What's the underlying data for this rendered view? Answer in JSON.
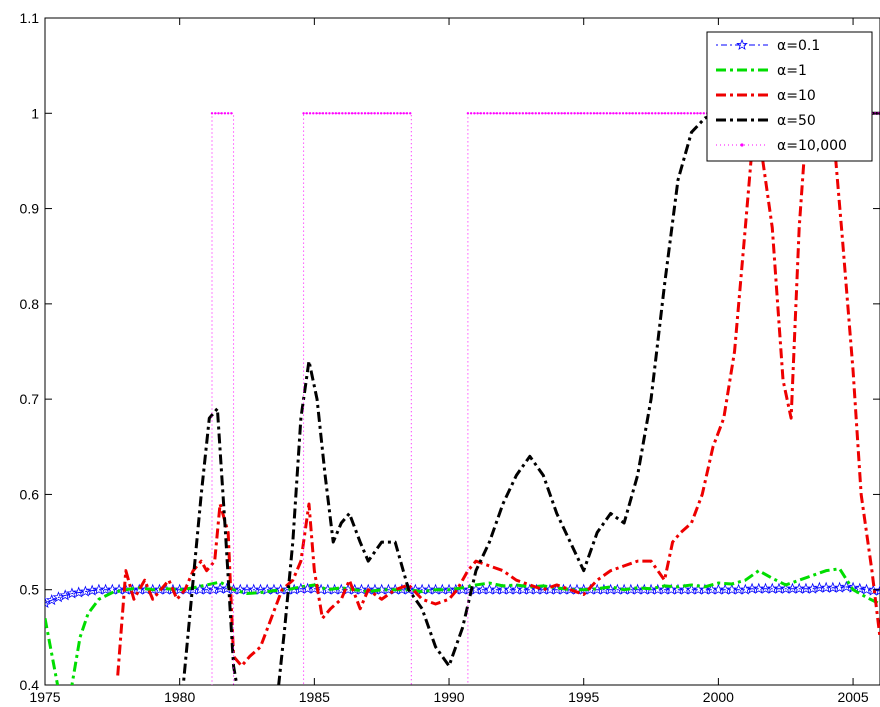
{
  "chart_data": {
    "type": "line",
    "title": "",
    "xlabel": "",
    "ylabel": "",
    "xlim": [
      1975,
      2006
    ],
    "ylim": [
      0.4,
      1.1
    ],
    "xticks": [
      "1975",
      "1980",
      "1985",
      "1990",
      "1995",
      "2000",
      "2005"
    ],
    "yticks": [
      "0.4",
      "0.5",
      "0.6",
      "0.7",
      "0.8",
      "0.9",
      "1",
      "1.1"
    ],
    "grid": false,
    "legend_position": "top-right",
    "series": [
      {
        "name": "α=0.1",
        "color": "#0000ff",
        "style": "dash-dot with star markers",
        "x": [
          1975,
          1975.25,
          1975.5,
          1975.75,
          1976,
          1976.25,
          1976.5,
          1976.75,
          1977,
          1977.25,
          1977.5,
          1977.75,
          1978,
          1978.25,
          1978.5,
          1978.75,
          1979,
          1979.25,
          1979.5,
          1979.75,
          1980,
          1980.25,
          1980.5,
          1980.75,
          1981,
          1981.25,
          1981.5,
          1981.75,
          1982,
          1982.25,
          1982.5,
          1982.75,
          1983,
          1983.25,
          1983.5,
          1983.75,
          1984,
          1984.25,
          1984.5,
          1984.75,
          1985,
          1985.25,
          1985.5,
          1985.75,
          1986,
          1986.25,
          1986.5,
          1986.75,
          1987,
          1987.25,
          1987.5,
          1987.75,
          1988,
          1988.25,
          1988.5,
          1988.75,
          1989,
          1989.25,
          1989.5,
          1989.75,
          1990,
          1990.25,
          1990.5,
          1990.75,
          1991,
          1991.25,
          1991.5,
          1991.75,
          1992,
          1992.25,
          1992.5,
          1992.75,
          1993,
          1993.25,
          1993.5,
          1993.75,
          1994,
          1994.25,
          1994.5,
          1994.75,
          1995,
          1995.25,
          1995.5,
          1995.75,
          1996,
          1996.25,
          1996.5,
          1996.75,
          1997,
          1997.25,
          1997.5,
          1997.75,
          1998,
          1998.25,
          1998.5,
          1998.75,
          1999,
          1999.25,
          1999.5,
          1999.75,
          2000,
          2000.25,
          2000.5,
          2000.75,
          2001,
          2001.25,
          2001.5,
          2001.75,
          2002,
          2002.25,
          2002.5,
          2002.75,
          2003,
          2003.25,
          2003.5,
          2003.75,
          2004,
          2004.25,
          2004.5,
          2004.75,
          2005,
          2005.25,
          2005.5,
          2005.75,
          2006
        ],
        "y": [
          0.486,
          0.489,
          0.492,
          0.494,
          0.496,
          0.497,
          0.498,
          0.499,
          0.5,
          0.5,
          0.5,
          0.5,
          0.5,
          0.5,
          0.5,
          0.5,
          0.5,
          0.5,
          0.5,
          0.5,
          0.5,
          0.5,
          0.5,
          0.5,
          0.5,
          0.5,
          0.501,
          0.501,
          0.5,
          0.5,
          0.5,
          0.5,
          0.5,
          0.5,
          0.5,
          0.5,
          0.5,
          0.5,
          0.501,
          0.501,
          0.501,
          0.5,
          0.5,
          0.5,
          0.5,
          0.5,
          0.5,
          0.5,
          0.5,
          0.5,
          0.5,
          0.5,
          0.5,
          0.5,
          0.5,
          0.5,
          0.5,
          0.5,
          0.5,
          0.5,
          0.5,
          0.5,
          0.5,
          0.5,
          0.5,
          0.5,
          0.5,
          0.5,
          0.5,
          0.5,
          0.5,
          0.5,
          0.5,
          0.5,
          0.5,
          0.5,
          0.5,
          0.5,
          0.5,
          0.5,
          0.5,
          0.5,
          0.5,
          0.5,
          0.5,
          0.5,
          0.5,
          0.5,
          0.5,
          0.5,
          0.5,
          0.5,
          0.5,
          0.5,
          0.5,
          0.5,
          0.5,
          0.5,
          0.5,
          0.5,
          0.5,
          0.5,
          0.5,
          0.5,
          0.5,
          0.501,
          0.501,
          0.501,
          0.501,
          0.501,
          0.501,
          0.501,
          0.501,
          0.501,
          0.501,
          0.502,
          0.502,
          0.502,
          0.502,
          0.503,
          0.502,
          0.501,
          0.5,
          0.499,
          0.499
        ]
      },
      {
        "name": "α=1",
        "color": "#00dd00",
        "style": "dash-dot",
        "x": [
          1975,
          1975.2,
          1975.4,
          1975.6,
          1975.8,
          1976,
          1976.3,
          1976.6,
          1977,
          1977.5,
          1978,
          1978.5,
          1979,
          1979.5,
          1980,
          1980.5,
          1981,
          1981.5,
          1982,
          1982.5,
          1983,
          1983.5,
          1984,
          1984.5,
          1985,
          1985.5,
          1986,
          1986.5,
          1987,
          1987.5,
          1988,
          1988.5,
          1989,
          1989.5,
          1990,
          1990.5,
          1991,
          1991.5,
          1992,
          1992.5,
          1993,
          1993.5,
          1994,
          1994.5,
          1995,
          1995.5,
          1996,
          1996.5,
          1997,
          1997.5,
          1998,
          1998.5,
          1999,
          1999.5,
          2000,
          2000.5,
          2001,
          2001.5,
          2002,
          2002.5,
          2003,
          2003.5,
          2004,
          2004.5,
          2005,
          2005.5,
          2006
        ],
        "y": [
          0.47,
          0.44,
          0.41,
          0.38,
          0.38,
          0.4,
          0.45,
          0.475,
          0.49,
          0.497,
          0.5,
          0.502,
          0.5,
          0.501,
          0.5,
          0.502,
          0.505,
          0.508,
          0.5,
          0.496,
          0.497,
          0.499,
          0.5,
          0.503,
          0.505,
          0.5,
          0.502,
          0.5,
          0.498,
          0.5,
          0.5,
          0.5,
          0.498,
          0.5,
          0.5,
          0.502,
          0.505,
          0.507,
          0.504,
          0.505,
          0.503,
          0.504,
          0.502,
          0.5,
          0.5,
          0.501,
          0.503,
          0.5,
          0.502,
          0.501,
          0.504,
          0.503,
          0.505,
          0.503,
          0.507,
          0.506,
          0.51,
          0.52,
          0.512,
          0.505,
          0.51,
          0.515,
          0.52,
          0.522,
          0.5,
          0.492,
          0.485
        ]
      },
      {
        "name": "α=10",
        "color": "#ee0000",
        "style": "dash-dot",
        "x": [
          1977.7,
          1978,
          1978.3,
          1978.7,
          1979,
          1979.3,
          1979.6,
          1979.9,
          1980.2,
          1980.5,
          1980.8,
          1981,
          1981.3,
          1981.5,
          1981.8,
          1982,
          1982.3,
          1982.6,
          1983,
          1983.4,
          1983.8,
          1984.2,
          1984.5,
          1984.8,
          1985,
          1985.3,
          1985.6,
          1986,
          1986.3,
          1986.7,
          1987,
          1987.5,
          1988,
          1988.5,
          1989,
          1989.5,
          1990,
          1990.3,
          1990.7,
          1991,
          1991.5,
          1992,
          1992.5,
          1993,
          1993.5,
          1994,
          1994.5,
          1995,
          1995.5,
          1996,
          1996.5,
          1997,
          1997.5,
          1998,
          1998.3,
          1998.6,
          1999,
          1999.4,
          1999.8,
          2000.2,
          2000.6,
          2001,
          2001.3,
          2001.6,
          2002,
          2002.4,
          2002.7,
          2003,
          2003.3,
          2003.6,
          2004,
          2004.3,
          2004.6,
          2005,
          2005.3,
          2005.7,
          2006
        ],
        "y": [
          0.41,
          0.52,
          0.49,
          0.51,
          0.49,
          0.5,
          0.51,
          0.49,
          0.5,
          0.52,
          0.53,
          0.52,
          0.53,
          0.59,
          0.56,
          0.43,
          0.42,
          0.43,
          0.44,
          0.47,
          0.5,
          0.51,
          0.53,
          0.59,
          0.52,
          0.47,
          0.48,
          0.49,
          0.51,
          0.48,
          0.5,
          0.49,
          0.5,
          0.505,
          0.49,
          0.485,
          0.49,
          0.5,
          0.52,
          0.53,
          0.525,
          0.52,
          0.51,
          0.505,
          0.5,
          0.505,
          0.5,
          0.495,
          0.51,
          0.52,
          0.525,
          0.53,
          0.53,
          0.51,
          0.55,
          0.56,
          0.57,
          0.6,
          0.65,
          0.68,
          0.75,
          0.88,
          0.98,
          0.96,
          0.88,
          0.72,
          0.68,
          0.88,
          1.0,
          1.03,
          1.01,
          0.97,
          0.87,
          0.73,
          0.6,
          0.52,
          0.45
        ]
      },
      {
        "name": "α=50",
        "color": "#000000",
        "style": "dash-dot",
        "x": [
          1980.1,
          1980.4,
          1980.8,
          1981.1,
          1981.4,
          1981.7,
          1982,
          1982.3,
          1983.6,
          1983.9,
          1984.2,
          1984.5,
          1984.8,
          1985.1,
          1985.4,
          1985.7,
          1986,
          1986.3,
          1986.7,
          1987,
          1987.5,
          1988,
          1988.5,
          1989,
          1989.5,
          1990,
          1990.5,
          1991,
          1991.5,
          1992,
          1992.5,
          1993,
          1993.5,
          1994,
          1994.5,
          1995,
          1995.5,
          1996,
          1996.5,
          1997,
          1997.5,
          1998,
          1998.5,
          1999,
          1999.5,
          2000,
          2000.5,
          2001,
          2001.5,
          2002,
          2002.5,
          2003,
          2003.5,
          2004,
          2004.5,
          2005,
          2005.5,
          2006
        ],
        "y": [
          0.39,
          0.48,
          0.6,
          0.68,
          0.69,
          0.56,
          0.42,
          0.37,
          0.38,
          0.46,
          0.55,
          0.68,
          0.74,
          0.7,
          0.62,
          0.55,
          0.57,
          0.58,
          0.55,
          0.53,
          0.55,
          0.55,
          0.5,
          0.48,
          0.44,
          0.42,
          0.46,
          0.52,
          0.55,
          0.59,
          0.62,
          0.64,
          0.62,
          0.58,
          0.55,
          0.52,
          0.56,
          0.58,
          0.57,
          0.62,
          0.7,
          0.82,
          0.93,
          0.98,
          0.995,
          1.0,
          1.0,
          1.0,
          1.0,
          1.0,
          1.0,
          1.0,
          1.0,
          1.0,
          1.0,
          1.0,
          1.0,
          1.0
        ]
      },
      {
        "name": "α=10,000",
        "color": "#ff00ff",
        "style": "dotted with point markers",
        "x": [
          1975,
          1981.2,
          1981.2,
          1982,
          1982,
          1984.6,
          1984.6,
          1988.6,
          1988.6,
          1990.7,
          1990.7,
          2006
        ],
        "y": [
          0.39,
          0.39,
          1.0,
          1.0,
          0.39,
          0.39,
          1.0,
          1.0,
          0.39,
          0.39,
          1.0,
          1.0
        ]
      }
    ]
  }
}
